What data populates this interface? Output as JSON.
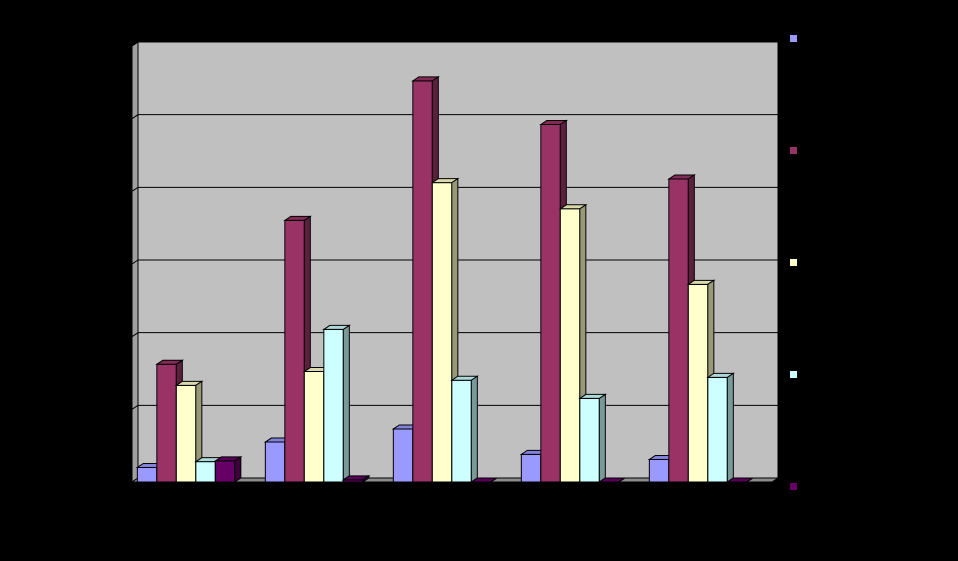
{
  "chart_data": {
    "type": "bar",
    "title": "",
    "xlabel": "",
    "ylabel": "",
    "categories": [
      "",
      "",
      "",
      "",
      ""
    ],
    "ylim": [
      0,
      6
    ],
    "grid": true,
    "legend_position": "right",
    "series": [
      {
        "color": "#9999FF",
        "values": [
          0.2,
          0.55,
          0.73,
          0.38,
          0.31
        ]
      },
      {
        "color": "#993366",
        "values": [
          1.62,
          3.6,
          5.52,
          4.92,
          4.17
        ]
      },
      {
        "color": "#FFFFCC",
        "values": [
          1.33,
          1.52,
          4.12,
          3.76,
          2.72
        ]
      },
      {
        "color": "#CCFFFF",
        "values": [
          0.28,
          2.1,
          1.4,
          1.15,
          1.44
        ]
      },
      {
        "color": "#660066",
        "values": [
          0.29,
          0.03,
          0.0,
          0.0,
          0.0
        ]
      }
    ]
  }
}
